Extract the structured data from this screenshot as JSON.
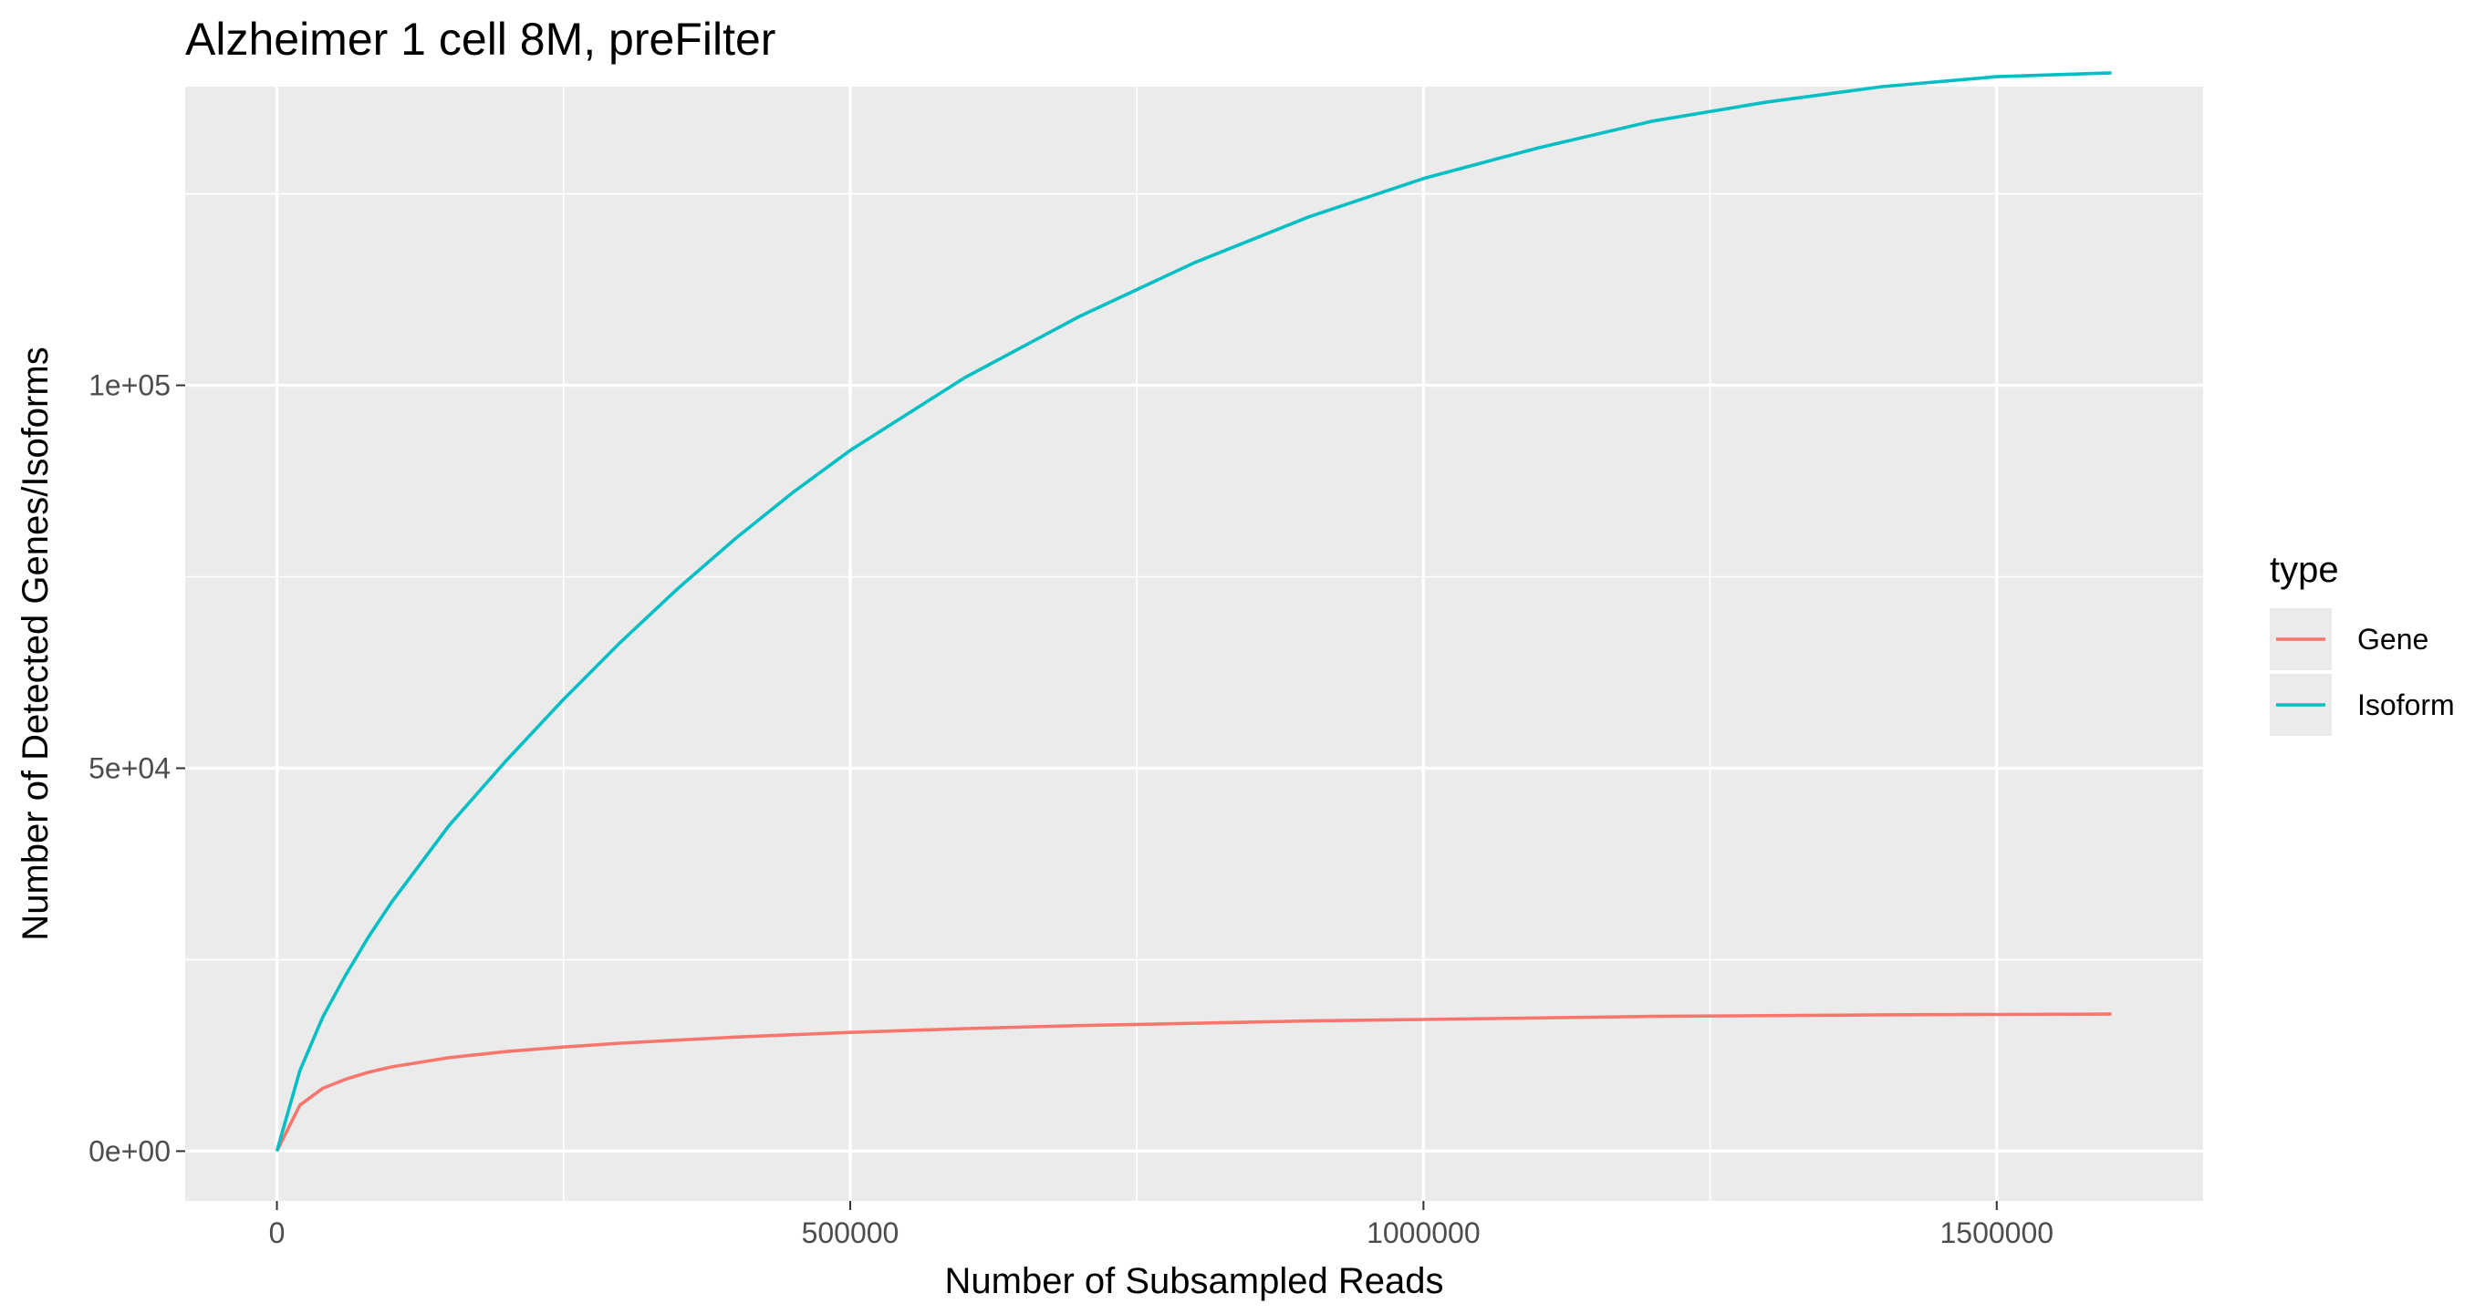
{
  "chart_data": {
    "type": "line",
    "title": "Alzheimer 1 cell 8M, preFilter",
    "xlabel": "Number of Subsampled Reads",
    "ylabel": "Number of Detected Genes/Isoforms",
    "xlim": [
      -80000,
      1680000
    ],
    "ylim": [
      -6500,
      139000
    ],
    "x_ticks": [
      0,
      500000,
      1000000,
      1500000
    ],
    "x_tick_labels": [
      "0",
      "500000",
      "1000000",
      "1500000"
    ],
    "y_ticks": [
      0,
      50000,
      100000
    ],
    "y_tick_labels": [
      "0e+00",
      "5e+04",
      "1e+05"
    ],
    "grid": true,
    "legend": {
      "title": "type",
      "position": "right"
    },
    "x": [
      0,
      20000,
      40000,
      60000,
      80000,
      100000,
      150000,
      200000,
      250000,
      300000,
      350000,
      400000,
      450000,
      500000,
      600000,
      700000,
      800000,
      900000,
      1000000,
      1100000,
      1200000,
      1300000,
      1400000,
      1500000,
      1600000
    ],
    "series": [
      {
        "name": "Gene",
        "color": "#F8766D",
        "values": [
          0,
          6000,
          8200,
          9400,
          10300,
          11000,
          12200,
          13000,
          13600,
          14100,
          14500,
          14900,
          15200,
          15500,
          16000,
          16400,
          16700,
          17000,
          17200,
          17400,
          17600,
          17700,
          17800,
          17850,
          17900
        ]
      },
      {
        "name": "Isoform",
        "color": "#00BFC4",
        "values": [
          0,
          10500,
          17500,
          23000,
          28000,
          32500,
          42500,
          51000,
          59000,
          66500,
          73500,
          80000,
          86000,
          91500,
          101000,
          109000,
          116000,
          122000,
          127000,
          131000,
          134500,
          137000,
          139000,
          140300,
          140800
        ]
      }
    ]
  }
}
